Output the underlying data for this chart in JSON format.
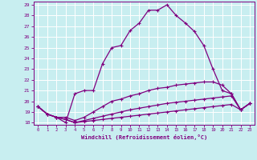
{
  "xlabel": "Windchill (Refroidissement éolien,°C)",
  "xlim": [
    -0.5,
    23.5
  ],
  "ylim": [
    17.8,
    29.3
  ],
  "yticks": [
    18,
    19,
    20,
    21,
    22,
    23,
    24,
    25,
    26,
    27,
    28,
    29
  ],
  "xticks": [
    0,
    1,
    2,
    3,
    4,
    5,
    6,
    7,
    8,
    9,
    10,
    11,
    12,
    13,
    14,
    15,
    16,
    17,
    18,
    19,
    20,
    21,
    22,
    23
  ],
  "bg_color": "#c8eef0",
  "grid_color": "#b8dde0",
  "line_color": "#800080",
  "line_width": 0.9,
  "marker": "+",
  "marker_size": 3.5,
  "series1": [
    [
      0,
      19.5
    ],
    [
      1,
      18.8
    ],
    [
      2,
      18.5
    ],
    [
      3,
      18.0
    ],
    [
      4,
      20.7
    ],
    [
      5,
      21.0
    ],
    [
      6,
      21.0
    ],
    [
      7,
      23.5
    ],
    [
      8,
      25.0
    ],
    [
      9,
      25.2
    ],
    [
      10,
      26.6
    ],
    [
      11,
      27.3
    ],
    [
      12,
      28.5
    ],
    [
      13,
      28.5
    ],
    [
      14,
      29.0
    ],
    [
      15,
      28.0
    ],
    [
      16,
      27.3
    ],
    [
      17,
      26.5
    ],
    [
      18,
      25.2
    ],
    [
      19,
      23.0
    ],
    [
      20,
      21.0
    ],
    [
      21,
      20.7
    ],
    [
      22,
      19.2
    ],
    [
      23,
      19.8
    ]
  ],
  "series2": [
    [
      0,
      19.5
    ],
    [
      1,
      18.8
    ],
    [
      2,
      18.5
    ],
    [
      3,
      18.5
    ],
    [
      4,
      18.2
    ],
    [
      5,
      18.5
    ],
    [
      6,
      19.0
    ],
    [
      7,
      19.5
    ],
    [
      8,
      20.0
    ],
    [
      9,
      20.2
    ],
    [
      10,
      20.5
    ],
    [
      11,
      20.7
    ],
    [
      12,
      21.0
    ],
    [
      13,
      21.2
    ],
    [
      14,
      21.3
    ],
    [
      15,
      21.5
    ],
    [
      16,
      21.6
    ],
    [
      17,
      21.7
    ],
    [
      18,
      21.8
    ],
    [
      19,
      21.8
    ],
    [
      20,
      21.5
    ],
    [
      21,
      20.7
    ],
    [
      22,
      19.2
    ],
    [
      23,
      19.8
    ]
  ],
  "series3": [
    [
      0,
      19.5
    ],
    [
      1,
      18.8
    ],
    [
      2,
      18.5
    ],
    [
      3,
      18.3
    ],
    [
      4,
      18.0
    ],
    [
      5,
      18.2
    ],
    [
      6,
      18.4
    ],
    [
      7,
      18.6
    ],
    [
      8,
      18.8
    ],
    [
      9,
      19.0
    ],
    [
      10,
      19.2
    ],
    [
      11,
      19.35
    ],
    [
      12,
      19.5
    ],
    [
      13,
      19.65
    ],
    [
      14,
      19.8
    ],
    [
      15,
      19.9
    ],
    [
      16,
      20.0
    ],
    [
      17,
      20.1
    ],
    [
      18,
      20.2
    ],
    [
      19,
      20.3
    ],
    [
      20,
      20.4
    ],
    [
      21,
      20.5
    ],
    [
      22,
      19.2
    ],
    [
      23,
      19.8
    ]
  ],
  "series4": [
    [
      0,
      19.5
    ],
    [
      1,
      18.8
    ],
    [
      2,
      18.5
    ],
    [
      3,
      18.3
    ],
    [
      4,
      18.0
    ],
    [
      5,
      18.1
    ],
    [
      6,
      18.2
    ],
    [
      7,
      18.3
    ],
    [
      8,
      18.4
    ],
    [
      9,
      18.5
    ],
    [
      10,
      18.6
    ],
    [
      11,
      18.7
    ],
    [
      12,
      18.8
    ],
    [
      13,
      18.9
    ],
    [
      14,
      19.0
    ],
    [
      15,
      19.1
    ],
    [
      16,
      19.2
    ],
    [
      17,
      19.3
    ],
    [
      18,
      19.4
    ],
    [
      19,
      19.5
    ],
    [
      20,
      19.6
    ],
    [
      21,
      19.7
    ],
    [
      22,
      19.2
    ],
    [
      23,
      19.8
    ]
  ]
}
